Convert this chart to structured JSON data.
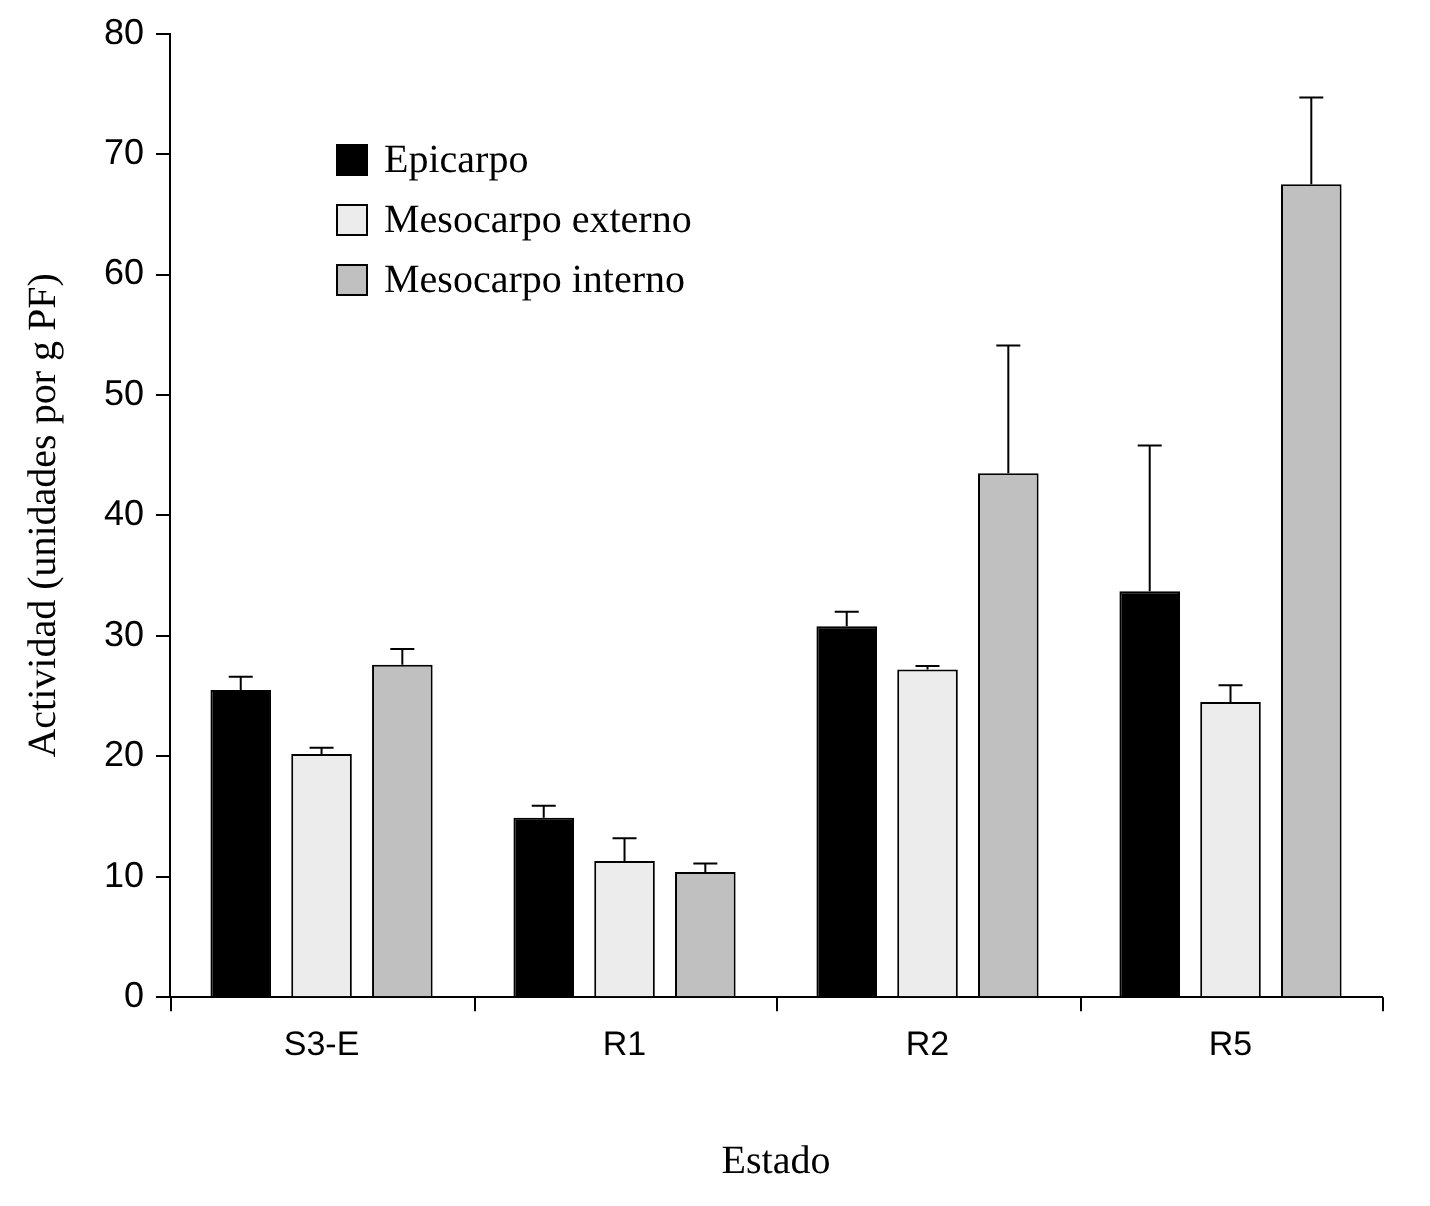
{
  "chart_data": {
    "type": "bar",
    "xlabel": "Estado",
    "ylabel": "Actividad (unidades por g PF)",
    "categories": [
      "S3-E",
      "R1",
      "R2",
      "R5"
    ],
    "series": [
      {
        "name": "Epicarpo",
        "color": "#000000",
        "values": [
          25.5,
          14.9,
          30.8,
          33.7
        ],
        "errors": [
          [
            25.5,
            26.6
          ],
          [
            14.9,
            15.9
          ],
          [
            30.8,
            32.0
          ],
          [
            33.7,
            45.8
          ]
        ]
      },
      {
        "name": "Mesocarpo externo",
        "color": "#ececec",
        "values": [
          20.2,
          11.3,
          27.2,
          24.5
        ],
        "errors": [
          [
            20.2,
            20.7
          ],
          [
            11.3,
            13.2
          ],
          [
            27.2,
            27.5
          ],
          [
            24.5,
            25.9
          ]
        ]
      },
      {
        "name": "Mesocarpo interno",
        "color": "#c0c0c0",
        "values": [
          27.6,
          10.4,
          43.5,
          67.5
        ],
        "errors": [
          [
            27.6,
            28.9
          ],
          [
            10.4,
            11.1
          ],
          [
            43.5,
            54.1
          ],
          [
            67.5,
            74.7
          ]
        ]
      }
    ],
    "ylim": [
      0,
      80
    ],
    "yticks": [
      0,
      10,
      20,
      30,
      40,
      50,
      60,
      70,
      80
    ],
    "grid": false,
    "legend": "top left"
  }
}
